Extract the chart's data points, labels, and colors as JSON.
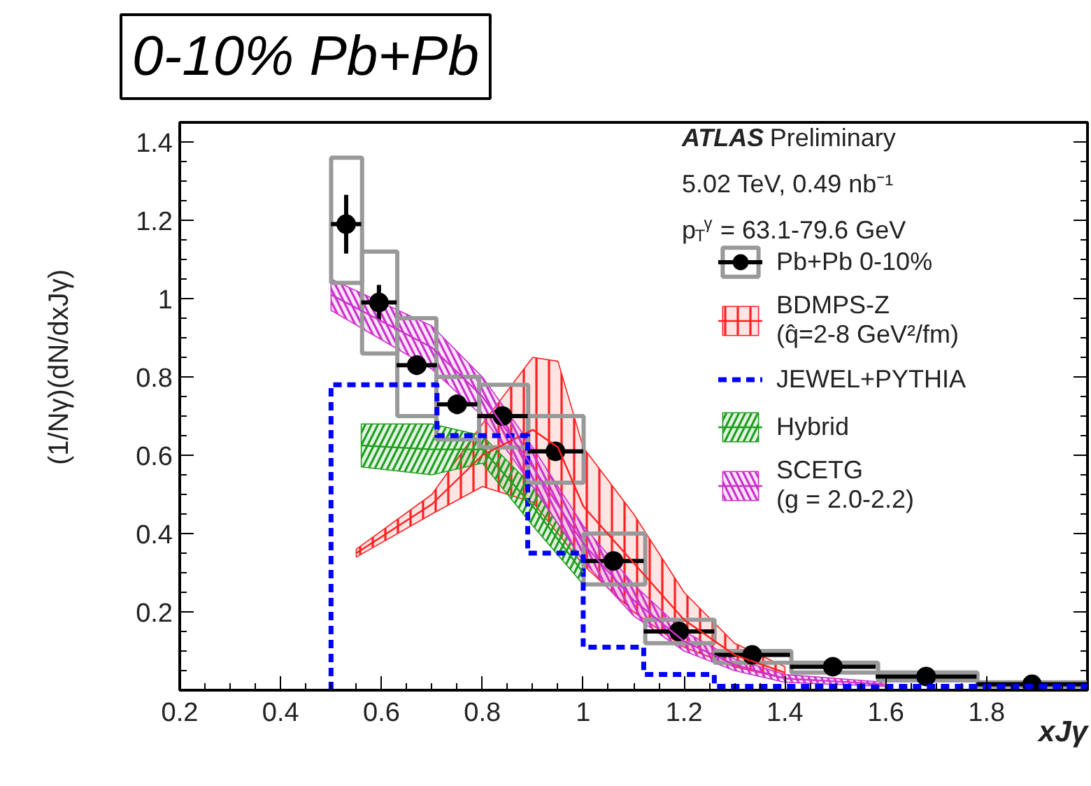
{
  "chart_data": {
    "type": "scatter",
    "title": "0-10% Pb+Pb",
    "xlabel": "xJγ",
    "ylabel": "(1/Nγ)(dN/dxJγ)",
    "annotations": [
      "ATLAS Preliminary",
      "5.02 TeV, 0.49 nb⁻¹",
      "p$_{T}$$^{γ}$ = 63.1-79.6 GeV"
    ],
    "xlim": [
      0.2,
      2.0
    ],
    "ylim": [
      0,
      1.45
    ],
    "xticks": [
      0.2,
      0.4,
      0.6,
      0.8,
      1,
      1.2,
      1.4,
      1.6,
      1.8
    ],
    "yticks": [
      0.2,
      0.4,
      0.6,
      0.8,
      1,
      1.2,
      1.4
    ],
    "grid": false,
    "legend": "top right",
    "series": [
      {
        "type": "bar",
        "color": "#999999",
        "x": [
          0.53,
          0.595,
          0.67,
          0.75,
          0.84,
          0.945,
          1.06,
          1.19,
          1.335,
          1.495,
          1.68,
          1.89
        ],
        "base": [
          1.04,
          0.86,
          0.7,
          0.64,
          0.62,
          0.53,
          0.27,
          0.12,
          0.07,
          0.045,
          0.025,
          0.01
        ],
        "values": [
          0.32,
          0.26,
          0.25,
          0.16,
          0.16,
          0.17,
          0.13,
          0.06,
          0.03,
          0.025,
          0.02,
          0.01
        ]
      },
      {
        "name": "Pb+Pb 0-10%",
        "color": "#000000",
        "marker": "circle",
        "x": [
          0.53,
          0.595,
          0.67,
          0.75,
          0.84,
          0.945,
          1.06,
          1.19,
          1.335,
          1.495,
          1.68,
          1.89
        ],
        "values": [
          1.19,
          0.99,
          0.83,
          0.73,
          0.7,
          0.61,
          0.33,
          0.15,
          0.09,
          0.06,
          0.035,
          0.015
        ],
        "errors": [
          0.075,
          0.045,
          0.025,
          0.025,
          0.02,
          0.02,
          null,
          null,
          null,
          null,
          null,
          null
        ],
        "xerrors": [
          [
            0.5,
            0.56
          ],
          [
            0.56,
            0.63
          ],
          [
            0.63,
            0.71
          ],
          [
            0.71,
            0.79
          ],
          [
            0.79,
            0.89
          ],
          [
            0.89,
            1.0
          ],
          [
            1.0,
            1.12
          ],
          [
            1.12,
            1.26
          ],
          [
            1.26,
            1.41
          ],
          [
            1.41,
            1.58
          ],
          [
            1.58,
            1.78
          ],
          [
            1.78,
            2.0
          ]
        ]
      },
      {
        "type": "line",
        "name": "BDMPS-Z\n(q̂=2-8 GeV²/fm)",
        "color": "#ff2020",
        "x": [
          0.55,
          0.7,
          0.8,
          0.9,
          0.95,
          1.0,
          1.1,
          1.2,
          1.3,
          1.4
        ],
        "values": [
          0.35,
          0.475,
          0.6,
          0.665,
          0.62,
          0.47,
          0.325,
          0.18,
          0.09,
          0.045
        ],
        "lower": [
          0.34,
          0.45,
          0.52,
          0.48,
          0.4,
          0.32,
          0.2,
          0.11,
          0.06,
          0.03
        ],
        "upper": [
          0.36,
          0.5,
          0.68,
          0.85,
          0.84,
          0.62,
          0.45,
          0.25,
          0.12,
          0.06
        ]
      },
      {
        "type": "step",
        "name": "JEWEL+PYTHIA",
        "color": "#0000ff",
        "line_style": "dashed",
        "x": [
          0.5,
          0.5,
          0.71,
          0.89,
          1.0,
          1.12,
          1.26,
          2.0
        ],
        "values": [
          0,
          0.78,
          0.65,
          0.35,
          0.11,
          0.04,
          0.01,
          0.01
        ]
      },
      {
        "type": "line",
        "name": "Hybrid",
        "color": "#20a020",
        "x": [
          0.56,
          0.7,
          0.8,
          0.9,
          1.0
        ],
        "values": [
          0.625,
          0.615,
          0.615,
          0.47,
          0.3
        ],
        "lower": [
          0.57,
          0.55,
          0.58,
          0.42,
          0.27
        ],
        "upper": [
          0.68,
          0.68,
          0.65,
          0.52,
          0.33
        ]
      },
      {
        "type": "line",
        "name": "SCETG\n(g = 2.0-2.2)",
        "color": "#cc33cc",
        "x": [
          0.5,
          0.7,
          0.8,
          0.9,
          1.0,
          1.1,
          1.2,
          1.3,
          1.4,
          1.6
        ],
        "values": [
          1.01,
          0.875,
          0.75,
          0.57,
          0.375,
          0.23,
          0.125,
          0.065,
          0.03,
          0.015
        ],
        "lower": [
          0.97,
          0.82,
          0.7,
          0.52,
          0.33,
          0.19,
          0.1,
          0.05,
          0.02,
          0.01
        ],
        "upper": [
          1.05,
          0.93,
          0.8,
          0.62,
          0.42,
          0.27,
          0.15,
          0.08,
          0.04,
          0.02
        ]
      }
    ]
  }
}
